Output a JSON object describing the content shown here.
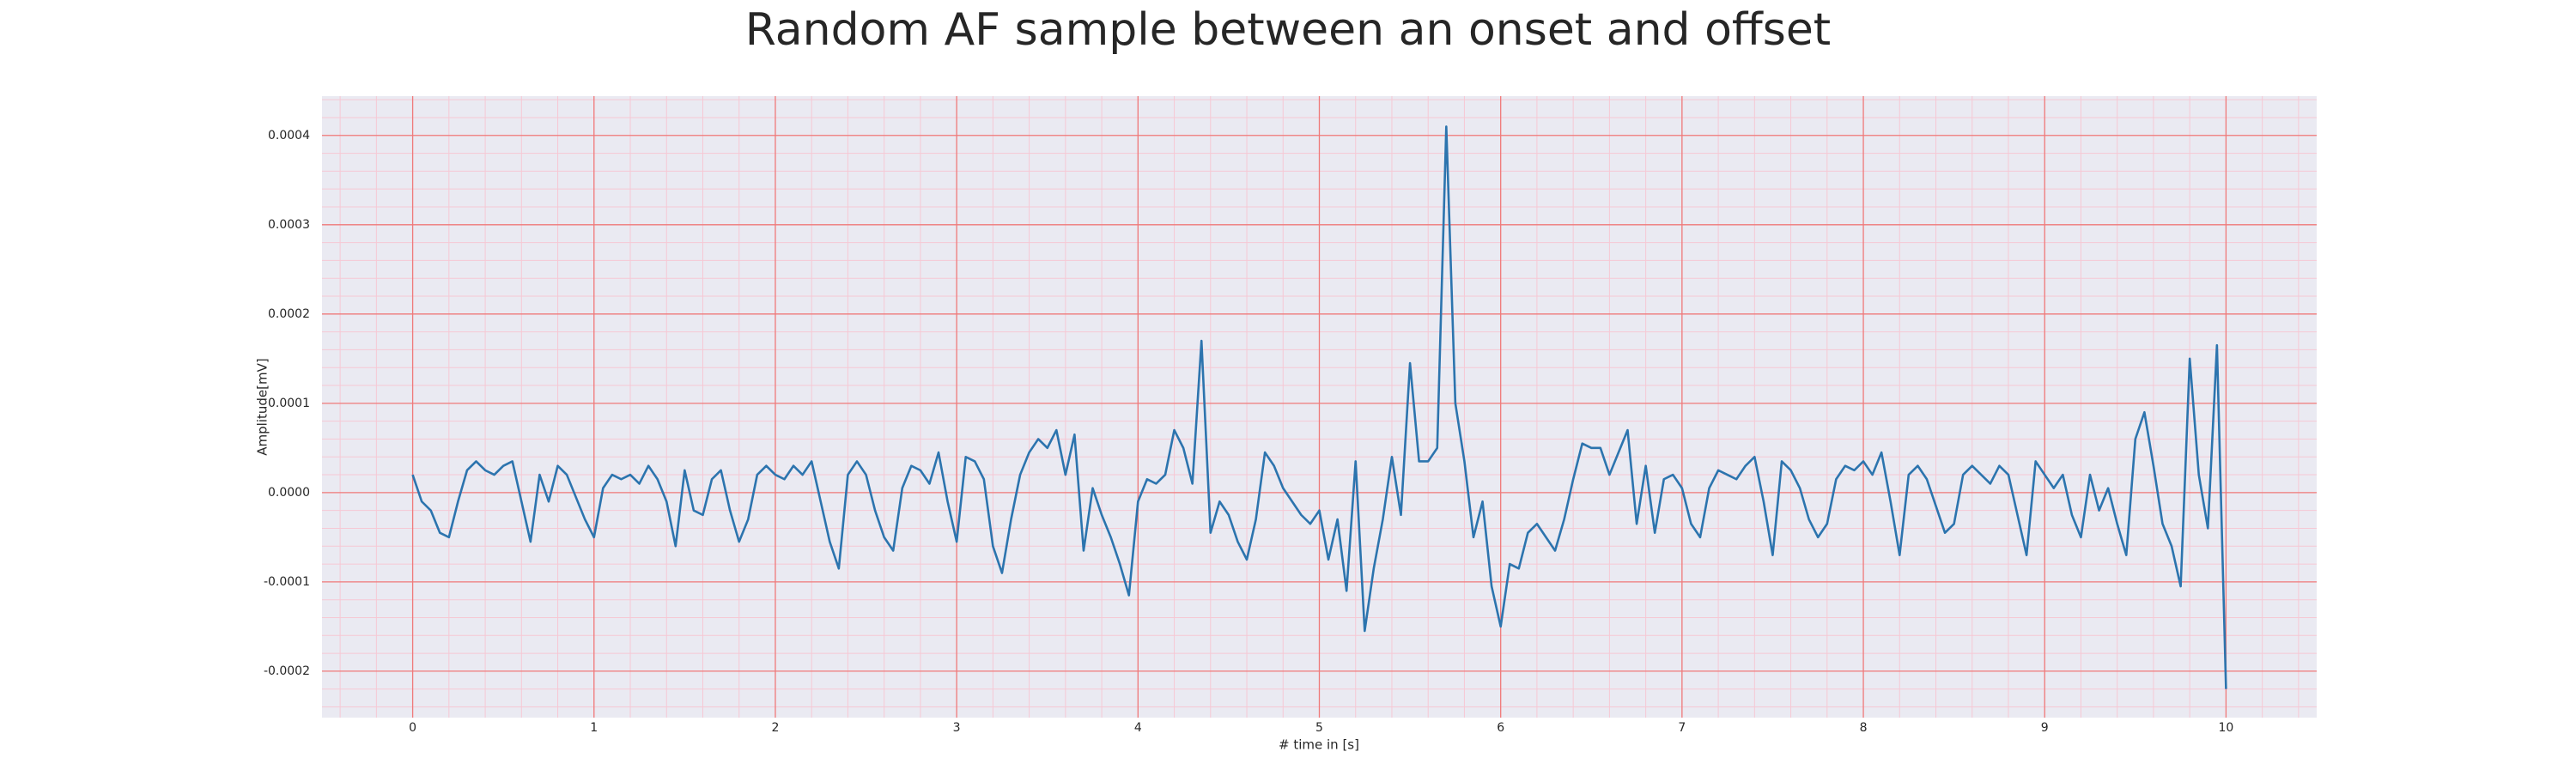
{
  "chart_data": {
    "type": "line",
    "title": "Random AF sample between an onset and offset",
    "xlabel": "# time in [s]",
    "ylabel": "Amplitude[mV]",
    "color": "#2c74ae",
    "grid": true,
    "minor_grid": true,
    "xlim": [
      -0.5,
      10.5
    ],
    "ylim": [
      -0.000252,
      0.000444
    ],
    "xticks": [
      0,
      1,
      2,
      3,
      4,
      5,
      6,
      7,
      8,
      9,
      10
    ],
    "yticks": [
      -0.0002,
      -0.0001,
      {
        "value": 0,
        "label": "0.0000"
      },
      0.0001,
      0.0002,
      0.0003,
      0.0004
    ],
    "x": [
      0,
      0.05,
      0.1,
      0.15,
      0.2,
      0.25,
      0.3,
      0.35,
      0.4,
      0.45,
      0.5,
      0.55,
      0.6,
      0.65,
      0.7,
      0.75,
      0.8,
      0.85,
      0.9,
      0.95,
      1,
      1.05,
      1.1,
      1.15,
      1.2,
      1.25,
      1.3,
      1.35,
      1.4,
      1.45,
      1.5,
      1.55,
      1.6,
      1.65,
      1.7,
      1.75,
      1.8,
      1.85,
      1.9,
      1.95,
      2,
      2.05,
      2.1,
      2.15,
      2.2,
      2.25,
      2.3,
      2.35,
      2.4,
      2.45,
      2.5,
      2.55,
      2.6,
      2.65,
      2.7,
      2.75,
      2.8,
      2.85,
      2.9,
      2.95,
      3,
      3.05,
      3.1,
      3.15,
      3.2,
      3.25,
      3.3,
      3.35,
      3.4,
      3.45,
      3.5,
      3.55,
      3.6,
      3.65,
      3.7,
      3.75,
      3.8,
      3.85,
      3.9,
      3.95,
      4,
      4.05,
      4.1,
      4.15,
      4.2,
      4.25,
      4.3,
      4.35,
      4.4,
      4.45,
      4.5,
      4.55,
      4.6,
      4.65,
      4.7,
      4.75,
      4.8,
      4.85,
      4.9,
      4.95,
      5,
      5.05,
      5.1,
      5.15,
      5.2,
      5.25,
      5.3,
      5.35,
      5.4,
      5.45,
      5.5,
      5.55,
      5.6,
      5.65,
      5.7,
      5.75,
      5.8,
      5.85,
      5.9,
      5.95,
      6,
      6.05,
      6.1,
      6.15,
      6.2,
      6.25,
      6.3,
      6.35,
      6.4,
      6.45,
      6.5,
      6.55,
      6.6,
      6.65,
      6.7,
      6.75,
      6.8,
      6.85,
      6.9,
      6.95,
      7,
      7.05,
      7.1,
      7.15,
      7.2,
      7.25,
      7.3,
      7.35,
      7.4,
      7.45,
      7.5,
      7.55,
      7.6,
      7.65,
      7.7,
      7.75,
      7.8,
      7.85,
      7.9,
      7.95,
      8,
      8.05,
      8.1,
      8.15,
      8.2,
      8.25,
      8.3,
      8.35,
      8.4,
      8.45,
      8.5,
      8.55,
      8.6,
      8.65,
      8.7,
      8.75,
      8.8,
      8.85,
      8.9,
      8.95,
      9,
      9.05,
      9.1,
      9.15,
      9.2,
      9.25,
      9.3,
      9.35,
      9.4,
      9.45,
      9.5,
      9.55,
      9.6,
      9.65,
      9.7,
      9.75,
      9.8,
      9.85,
      9.9,
      9.95,
      10
    ],
    "values": [
      2e-05,
      -1e-05,
      -2e-05,
      -4.5e-05,
      -5e-05,
      -1e-05,
      2.5e-05,
      3.5e-05,
      2.5e-05,
      2e-05,
      3e-05,
      3.5e-05,
      -1e-05,
      -5.5e-05,
      2e-05,
      -1e-05,
      3e-05,
      2e-05,
      -5e-06,
      -3e-05,
      -5e-05,
      5e-06,
      2e-05,
      1.5e-05,
      2e-05,
      1e-05,
      3e-05,
      1.5e-05,
      -1e-05,
      -6e-05,
      2.5e-05,
      -2e-05,
      -2.5e-05,
      1.5e-05,
      2.5e-05,
      -2e-05,
      -5.5e-05,
      -3e-05,
      2e-05,
      3e-05,
      2e-05,
      1.5e-05,
      3e-05,
      2e-05,
      3.5e-05,
      -1e-05,
      -5.5e-05,
      -8.5e-05,
      2e-05,
      3.5e-05,
      2e-05,
      -2e-05,
      -5e-05,
      -6.5e-05,
      5e-06,
      3e-05,
      2.5e-05,
      1e-05,
      4.5e-05,
      -1e-05,
      -5.5e-05,
      4e-05,
      3.5e-05,
      1.5e-05,
      -6e-05,
      -9e-05,
      -3e-05,
      2e-05,
      4.5e-05,
      6e-05,
      5e-05,
      7e-05,
      2e-05,
      6.5e-05,
      -6.5e-05,
      5e-06,
      -2.5e-05,
      -5e-05,
      -8e-05,
      -0.000115,
      -1e-05,
      1.5e-05,
      1e-05,
      2e-05,
      7e-05,
      5e-05,
      1e-05,
      0.00017,
      -4.5e-05,
      -1e-05,
      -2.5e-05,
      -5.5e-05,
      -7.5e-05,
      -3e-05,
      4.5e-05,
      3e-05,
      5e-06,
      -1e-05,
      -2.5e-05,
      -3.5e-05,
      -2e-05,
      -7.5e-05,
      -3e-05,
      -0.00011,
      3.5e-05,
      -0.000155,
      -8.5e-05,
      -3e-05,
      4e-05,
      -2.5e-05,
      0.000145,
      3.5e-05,
      3.5e-05,
      5e-05,
      0.00041,
      0.0001,
      3.5e-05,
      -5e-05,
      -1e-05,
      -0.000105,
      -0.00015,
      -8e-05,
      -8.5e-05,
      -4.5e-05,
      -3.5e-05,
      -5e-05,
      -6.5e-05,
      -3e-05,
      1.5e-05,
      5.5e-05,
      5e-05,
      5e-05,
      2e-05,
      4.5e-05,
      7e-05,
      -3.5e-05,
      3e-05,
      -4.5e-05,
      1.5e-05,
      2e-05,
      5e-06,
      -3.5e-05,
      -5e-05,
      5e-06,
      2.5e-05,
      2e-05,
      1.5e-05,
      3e-05,
      4e-05,
      -1e-05,
      -7e-05,
      3.5e-05,
      2.5e-05,
      5e-06,
      -3e-05,
      -5e-05,
      -3.5e-05,
      1.5e-05,
      3e-05,
      2.5e-05,
      3.5e-05,
      2e-05,
      4.5e-05,
      -1e-05,
      -7e-05,
      2e-05,
      3e-05,
      1.5e-05,
      -1.5e-05,
      -4.5e-05,
      -3.5e-05,
      2e-05,
      3e-05,
      2e-05,
      1e-05,
      3e-05,
      2e-05,
      -2.5e-05,
      -7e-05,
      3.5e-05,
      2e-05,
      5e-06,
      2e-05,
      -2.5e-05,
      -5e-05,
      2e-05,
      -2e-05,
      5e-06,
      -3.5e-05,
      -7e-05,
      6e-05,
      9e-05,
      3e-05,
      -3.5e-05,
      -6e-05,
      -0.000105,
      0.00015,
      2e-05,
      -4e-05,
      0.000165,
      -0.00022
    ]
  }
}
